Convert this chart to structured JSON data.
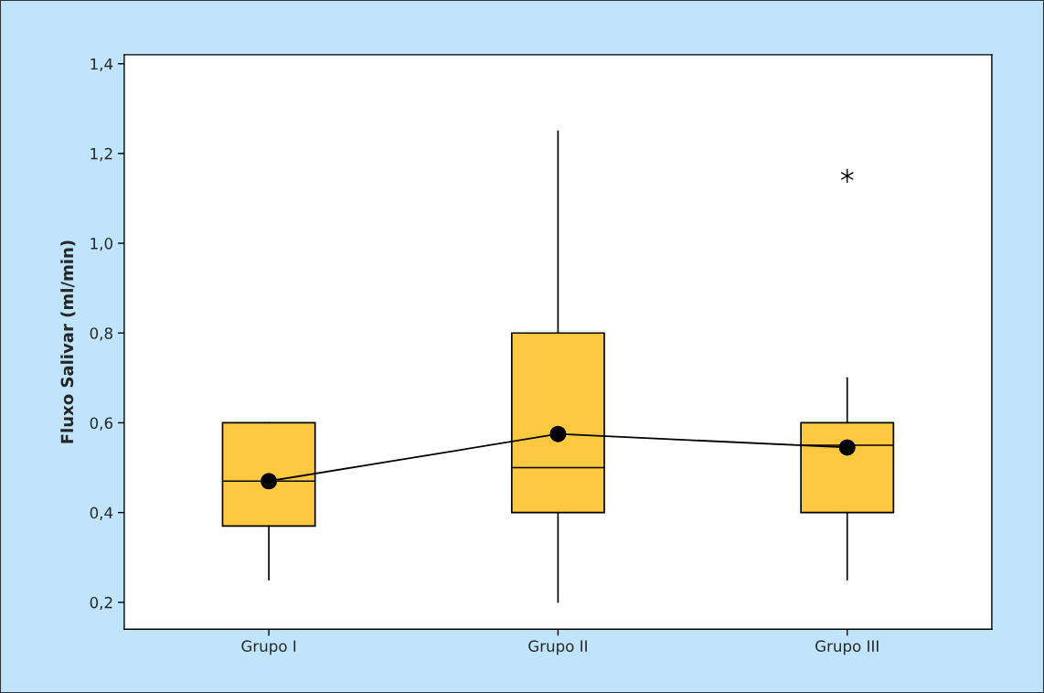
{
  "chart_data": {
    "type": "box",
    "ylabel": "Fluxo Salivar (ml/min)",
    "categories": [
      "Grupo I",
      "Grupo II",
      "Grupo III"
    ],
    "color": "#fec841",
    "boxes": [
      {
        "low": 0.25,
        "q1": 0.37,
        "median": 0.47,
        "q3": 0.6,
        "high": 0.6
      },
      {
        "low": 0.2,
        "q1": 0.4,
        "median": 0.5,
        "q3": 0.8,
        "high": 1.25
      },
      {
        "low": 0.25,
        "q1": 0.4,
        "median": 0.55,
        "q3": 0.6,
        "high": 0.7,
        "outliers": [
          1.15
        ]
      }
    ],
    "series": [
      {
        "type": "line",
        "color": "#000000",
        "marker": "circle",
        "values": [
          0.47,
          0.575,
          0.545
        ]
      }
    ],
    "ylim": [
      0.14,
      1.42
    ],
    "yticks": [
      {
        "value": 0.2,
        "label": "0,2"
      },
      {
        "value": 0.4,
        "label": "0,4"
      },
      {
        "value": 0.6,
        "label": "0,6"
      },
      {
        "value": 0.8,
        "label": "0,8"
      },
      {
        "value": 1.0,
        "label": "1,0"
      },
      {
        "value": 1.2,
        "label": "1,2"
      },
      {
        "value": 1.4,
        "label": "1,4"
      }
    ],
    "grid": false,
    "legend": false
  }
}
